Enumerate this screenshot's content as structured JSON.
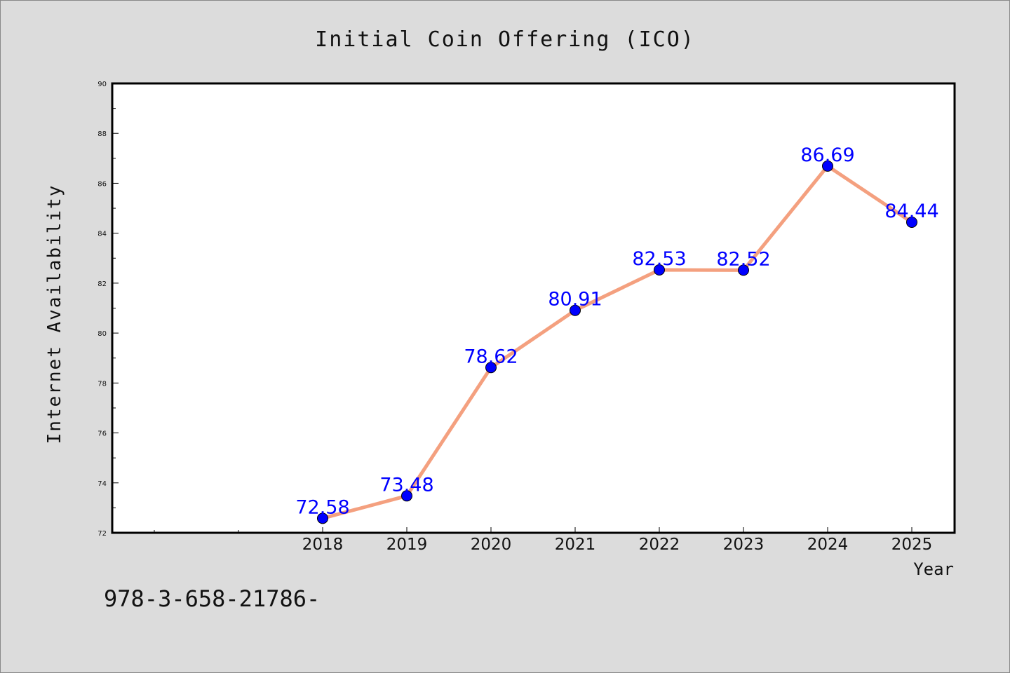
{
  "footnote": "978-3-658-21786-",
  "chart_data": {
    "type": "line",
    "title": "Initial Coin Offering (ICO)",
    "xlabel": "Year",
    "ylabel": "Internet Availability",
    "categories": [
      "2018",
      "2019",
      "2020",
      "2021",
      "2022",
      "2023",
      "2024",
      "2025"
    ],
    "series": [
      {
        "values": [
          72.58,
          73.48,
          78.62,
          80.91,
          82.53,
          82.52,
          86.69,
          84.44
        ]
      }
    ],
    "data_labels": [
      "72.58",
      "73.48",
      "78.62",
      "80.91",
      "82.53",
      "82.52",
      "86.69",
      "84.44"
    ],
    "yticks": [
      "72",
      "74",
      "76",
      "78",
      "80",
      "82",
      "84",
      "86",
      "88",
      "90"
    ],
    "ylim": [
      72,
      90
    ],
    "x_extra_slots_before": 2,
    "grid": false,
    "legend": "none",
    "colors": {
      "background": "#dcdcdc",
      "plot_background": "#ffffff",
      "line": "#f4a07f",
      "marker": "#0000ff",
      "data_label": "#0000ff"
    }
  }
}
